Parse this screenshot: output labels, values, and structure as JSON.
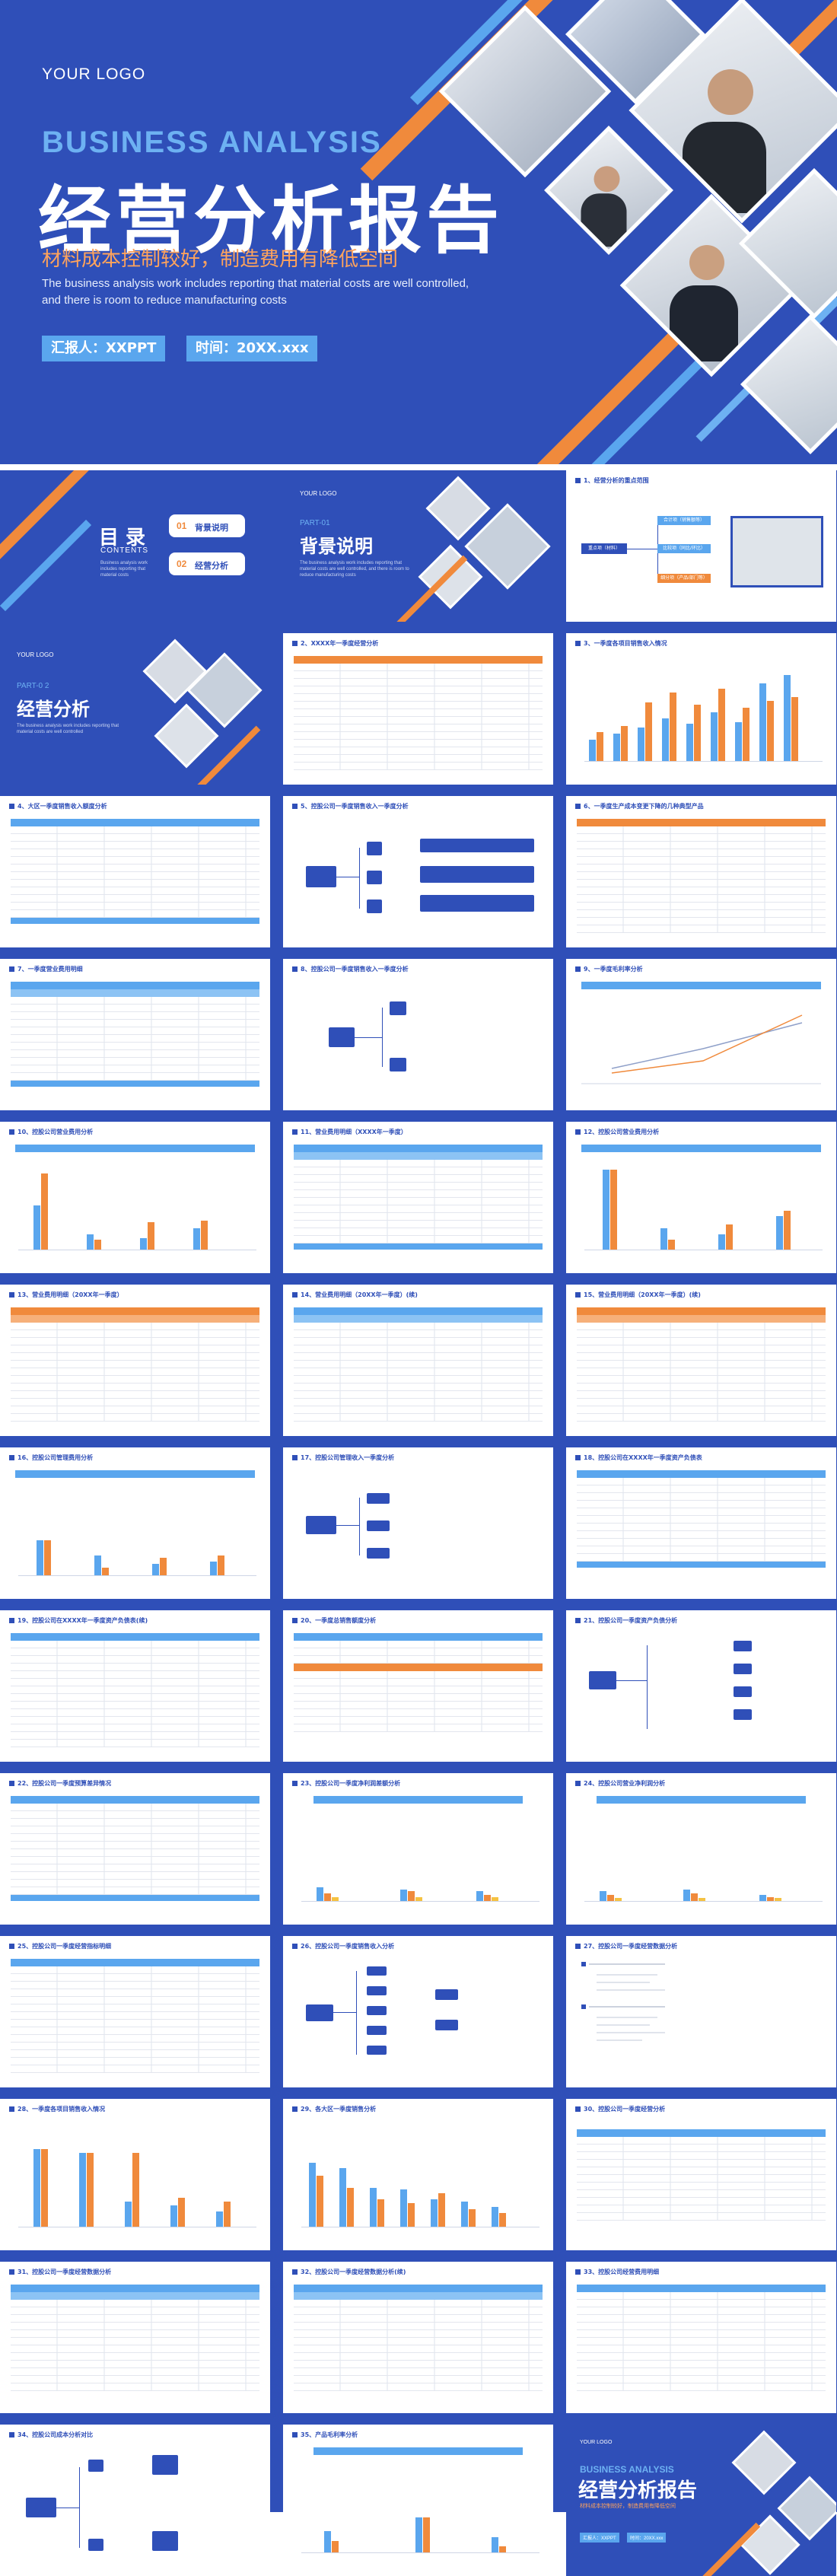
{
  "cover": {
    "logo": "YOUR LOGO",
    "title_en": "BUSINESS ANALYSIS",
    "title_cn": "经营分析报告",
    "subtitle": "材料成本控制较好，制造费用有降低空间",
    "desc_line1": "The business analysis work includes reporting that material costs are well controlled,",
    "desc_line2": "and there is room to reduce manufacturing costs",
    "reporter": "汇报人：XXPPT",
    "time": "时间：20XX.xxx"
  },
  "colors": {
    "primary": "#2f4fb8",
    "accent_orange": "#f08a3c",
    "accent_blue": "#5aa6ee"
  },
  "slides": {
    "toc": {
      "title": "目 录",
      "title_en": "CONTENTS",
      "item1_num": "01",
      "item1": "背景说明",
      "item2_num": "02",
      "item2": "经营分析",
      "desc": "Business analysis work includes reporting that material costs"
    },
    "part1": {
      "logo": "YOUR LOGO",
      "part": "PART-01",
      "title": "背景说明",
      "desc": "The business analysis work includes reporting that material costs are well controlled, and there is room to reduce manufacturing costs"
    },
    "s1": {
      "title": "1、经营分析的重点范围",
      "left": "重点项（材料）",
      "b1": "合计项（销售额等）",
      "b2": "比较项（同比/环比）",
      "b3": "细分项（产品/部门等）"
    },
    "part2": {
      "logo": "YOUR LOGO",
      "part": "PART-0 2",
      "title": "经营分析",
      "desc": "The business analysis work includes reporting that material costs are well controlled"
    },
    "s2": {
      "title": "2、XXXX年一季度经营分析"
    },
    "s3": {
      "title": "3、一季度各项目销售收入情况"
    },
    "s4": {
      "title": "4、大区一季度销售收入额度分析"
    },
    "s5": {
      "title": "5、控股公司一季度销售收入一季度分析"
    },
    "s6": {
      "title": "6、一季度生产成本变更下降的几种典型产品"
    },
    "s7": {
      "title": "7、一季度营业费用明细"
    },
    "s8": {
      "title": "8、控股公司一季度销售收入一季度分析"
    },
    "s9": {
      "title": "9、一季度毛利率分析"
    },
    "s10": {
      "title": "10、控股公司营业费用分析"
    },
    "s11": {
      "title": "11、营业费用明细（XXXX年一季度）"
    },
    "s12": {
      "title": "12、控股公司营业费用分析"
    },
    "s13": {
      "title": "13、营业费用明细（20XX年一季度）"
    },
    "s14": {
      "title": "14、营业费用明细（20XX年一季度）(续)"
    },
    "s15": {
      "title": "15、营业费用明细（20XX年一季度）(续)"
    },
    "s16": {
      "title": "16、控股公司管理费用分析"
    },
    "s17": {
      "title": "17、控股公司管理收入一季度分析"
    },
    "s18": {
      "title": "18、控股公司在XXXX年一季度资产负债表"
    },
    "s19": {
      "title": "19、控股公司在XXXX年一季度资产负债表(续)"
    },
    "s20": {
      "title": "20、一季度总销售额度分析"
    },
    "s21": {
      "title": "21、控股公司一季度资产负债分析"
    },
    "s22": {
      "title": "22、控股公司一季度预算差异情况"
    },
    "s23": {
      "title": "23、控股公司一季度净利润差额分析"
    },
    "s24": {
      "title": "24、控股公司营业净利润分析"
    },
    "s25": {
      "title": "25、控股公司一季度经营指标明细"
    },
    "s26": {
      "title": "26、控股公司一季度销售收入分析"
    },
    "s27": {
      "title": "27、控股公司一季度经营数据分析"
    },
    "s28": {
      "title": "28、一季度各项目销售收入情况"
    },
    "s29": {
      "title": "29、各大区一季度销售分析"
    },
    "s30": {
      "title": "30、控股公司一季度经营分析"
    },
    "s31": {
      "title": "31、控股公司一季度经营数据分析"
    },
    "s32": {
      "title": "32、控股公司一季度经营数据分析(续)"
    },
    "s33": {
      "title": "33、控股公司经营费用明细"
    },
    "s34": {
      "title": "34、控股公司成本分析对比"
    },
    "s35": {
      "title": "35、产品毛利率分析"
    },
    "end": {
      "logo": "YOUR LOGO",
      "title_en": "BUSINESS ANALYSIS",
      "title_cn": "经营分析报告",
      "subtitle": "材料成本控制较好，制造费用有降低空间",
      "reporter": "汇报人：XXPPT",
      "time": "时间：20XX.xxx"
    }
  }
}
